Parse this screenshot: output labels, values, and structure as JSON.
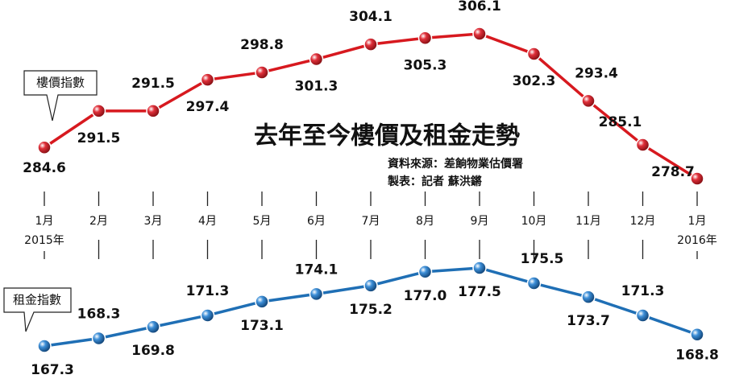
{
  "chart_data": {
    "type": "line",
    "title": "去年至今樓價及租金走勢",
    "source": "資料來源：差餉物業估價署",
    "credit": "製表：記者 蘇洪鏘",
    "categories": [
      "1月\n2015年",
      "2月",
      "3月",
      "4月",
      "5月",
      "6月",
      "7月",
      "8月",
      "9月",
      "10月",
      "11月",
      "12月",
      "1月\n2016年"
    ],
    "series": [
      {
        "name": "樓價指數",
        "color": "#d7191f",
        "values": [
          284.6,
          291.5,
          291.5,
          297.4,
          298.8,
          301.3,
          304.1,
          305.3,
          306.1,
          302.3,
          293.4,
          285.1,
          278.7
        ]
      },
      {
        "name": "租金指數",
        "color": "#1f6fb5",
        "values": [
          167.3,
          168.3,
          169.8,
          171.3,
          173.1,
          174.1,
          175.2,
          177.0,
          177.5,
          175.5,
          173.7,
          171.3,
          168.8
        ],
        "value_labels": [
          "167.3",
          "168.3",
          "169.8",
          "171.3",
          "173.1",
          "174.1",
          "175.2",
          "177.0",
          "177.5",
          "175.5",
          "173.7",
          "171.3",
          "168.8"
        ]
      }
    ]
  }
}
